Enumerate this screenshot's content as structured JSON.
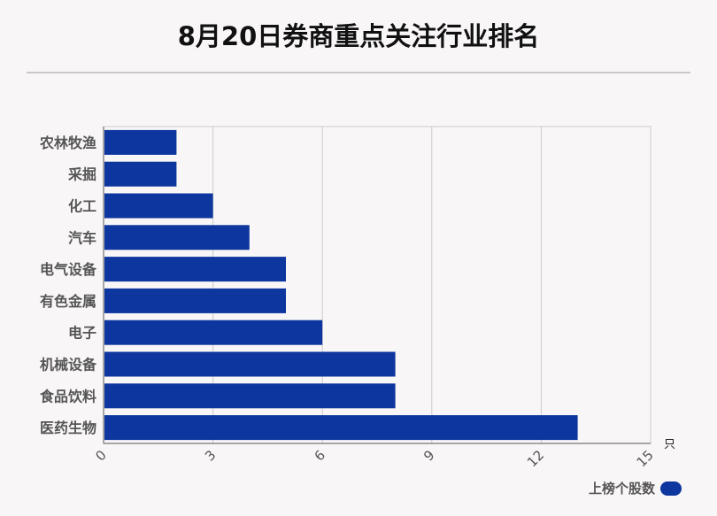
{
  "header": {
    "title": "8月20日券商重点关注行业排名"
  },
  "chart_data": {
    "type": "bar",
    "orientation": "horizontal",
    "title": "8月20日券商重点关注行业排名",
    "categories": [
      "农林牧渔",
      "采掘",
      "化工",
      "汽车",
      "电气设备",
      "有色金属",
      "电子",
      "机械设备",
      "食品饮料",
      "医药生物"
    ],
    "series": [
      {
        "name": "上榜个股数",
        "values": [
          2,
          2,
          3,
          4,
          5,
          5,
          6,
          8,
          8,
          13
        ]
      }
    ],
    "xlim": [
      0,
      15
    ],
    "xticks": [
      0,
      3,
      6,
      9,
      12,
      15
    ],
    "xunit": "只",
    "grid": true,
    "legend_position": "bottom-right",
    "bar_color": "#0d369e"
  },
  "legend": {
    "label": "上榜个股数"
  }
}
